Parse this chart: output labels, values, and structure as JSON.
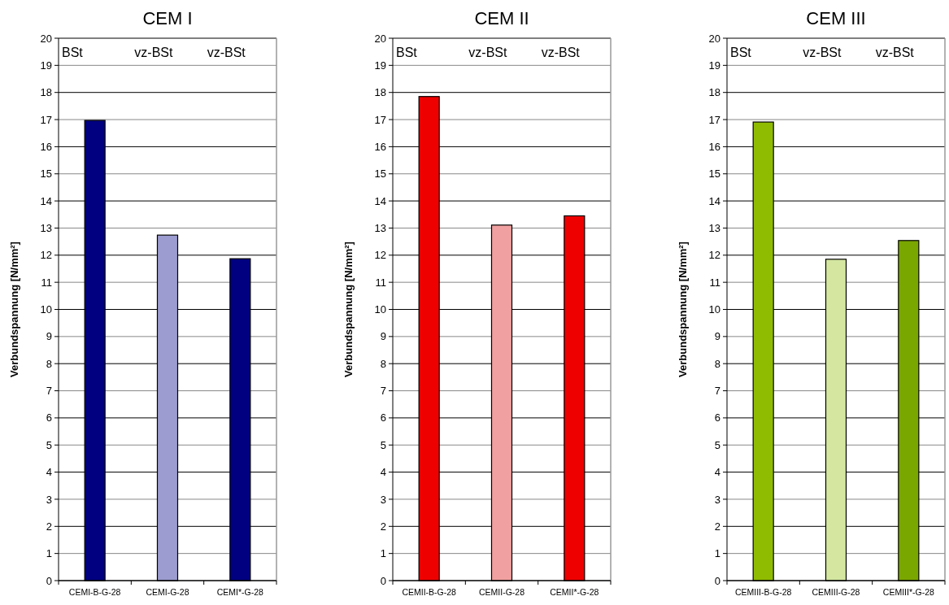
{
  "chart_data": [
    {
      "type": "bar",
      "title": "CEM I",
      "ylabel": "Verbundspannung [N/mm²]",
      "categories": [
        "CEMI-B-G-28",
        "CEMI-G-28",
        "CEMI*-G-28"
      ],
      "values": [
        16.97,
        12.74,
        11.87
      ],
      "colors": [
        "#000080",
        "#9c9cd0",
        "#000080"
      ],
      "ylim": [
        0,
        20
      ],
      "yticks": [
        0,
        1,
        2,
        3,
        4,
        5,
        6,
        7,
        8,
        9,
        10,
        11,
        12,
        13,
        14,
        15,
        16,
        17,
        18,
        19,
        20
      ],
      "grid": "y",
      "annotations": [
        "BSt",
        "vz-BSt",
        "vz-BSt"
      ]
    },
    {
      "type": "bar",
      "title": "CEM II",
      "ylabel": "Verbundspannung [N/mm²]",
      "categories": [
        "CEMII-B-G-28",
        "CEMII-G-28",
        "CEMII*-G-28"
      ],
      "values": [
        17.85,
        13.11,
        13.45
      ],
      "colors": [
        "#ee0000",
        "#f0a0a0",
        "#ee0000"
      ],
      "ylim": [
        0,
        20
      ],
      "yticks": [
        0,
        1,
        2,
        3,
        4,
        5,
        6,
        7,
        8,
        9,
        10,
        11,
        12,
        13,
        14,
        15,
        16,
        17,
        18,
        19,
        20
      ],
      "grid": "y",
      "annotations": [
        "BSt",
        "vz-BSt",
        "vz-BSt"
      ]
    },
    {
      "type": "bar",
      "title": "CEM III",
      "ylabel": "Verbundspannung [N/mm²]",
      "categories": [
        "CEMIII-B-G-28",
        "CEMIII-G-28",
        "CEMIII*-G-28"
      ],
      "values": [
        16.91,
        11.85,
        12.54
      ],
      "colors": [
        "#8fbc00",
        "#d4e6a0",
        "#7aa600"
      ],
      "ylim": [
        0,
        20
      ],
      "yticks": [
        0,
        1,
        2,
        3,
        4,
        5,
        6,
        7,
        8,
        9,
        10,
        11,
        12,
        13,
        14,
        15,
        16,
        17,
        18,
        19,
        20
      ],
      "grid": "y",
      "annotations": [
        "BSt",
        "vz-BSt",
        "vz-BSt"
      ]
    }
  ]
}
